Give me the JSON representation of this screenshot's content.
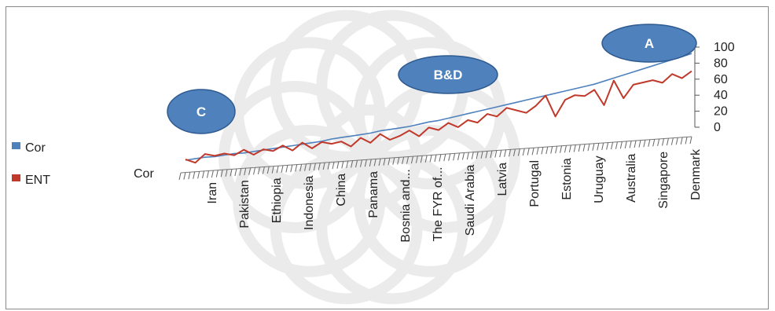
{
  "chart_data": {
    "type": "line",
    "view": "3d-perspective",
    "y_ticks": [
      "0",
      "20",
      "40",
      "60",
      "80",
      "100"
    ],
    "ylim": [
      0,
      100
    ],
    "depth_axis_label": "Cor",
    "x_tick_labels": [
      "Iran",
      "Pakistan",
      "Ethiopia",
      "Indonesia",
      "China",
      "Panama",
      "Bosnia and...",
      "The FYR of...",
      "Saudi Arabia",
      "Latvia",
      "Portugal",
      "Estonia",
      "Uruguay",
      "Australia",
      "Singapore",
      "Denmark"
    ],
    "legend_position": "left",
    "series": [
      {
        "name": "Cor",
        "color": "#4f81bd",
        "values": [
          2,
          3,
          4,
          4,
          5,
          6,
          6,
          7,
          8,
          9,
          10,
          11,
          12,
          13,
          14,
          16,
          17,
          18,
          19,
          20,
          22,
          23,
          24,
          25,
          27,
          29,
          30,
          32,
          34,
          36,
          38,
          40,
          42,
          44,
          46,
          48,
          50,
          52,
          54,
          56,
          58,
          60,
          62,
          65,
          68,
          71,
          74,
          77,
          80,
          83,
          86,
          89,
          92
        ]
      },
      {
        "name": "ENT",
        "color": "#c0392b",
        "values": [
          3,
          -2,
          8,
          5,
          7,
          4,
          10,
          3,
          9,
          6,
          12,
          5,
          14,
          6,
          13,
          10,
          12,
          5,
          15,
          8,
          18,
          10,
          14,
          20,
          12,
          22,
          18,
          26,
          20,
          28,
          24,
          34,
          30,
          40,
          36,
          32,
          40,
          52,
          25,
          45,
          50,
          48,
          55,
          35,
          65,
          42,
          58,
          60,
          62,
          58,
          68,
          62,
          70
        ]
      }
    ],
    "annotations": [
      "C",
      "B&D",
      "A"
    ]
  }
}
